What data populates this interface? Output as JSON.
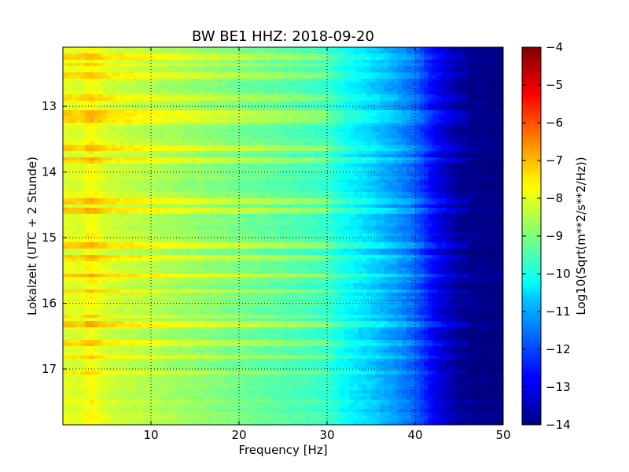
{
  "chart_data": {
    "type": "heatmap",
    "title": "BW BE1 HHZ: 2018-09-20",
    "xlabel": "Frequency [Hz]",
    "ylabel": "Lokalzeit (UTC + 2 Stunde)",
    "xlim": [
      0,
      50
    ],
    "ylim": [
      12.1,
      17.85
    ],
    "y_inverted": true,
    "x_ticks": [
      10,
      20,
      30,
      40,
      50
    ],
    "x_tick_labels": [
      "10",
      "20",
      "30",
      "40",
      "50"
    ],
    "y_ticks": [
      13,
      14,
      15,
      16,
      17
    ],
    "y_tick_labels": [
      "13",
      "14",
      "15",
      "16",
      "17"
    ],
    "grid": true,
    "colormap": "jet",
    "colorbar": {
      "label": "Log10(Sqrt(m**2/s**2/Hz))",
      "min": -14,
      "max": -4,
      "ticks": [
        -4,
        -5,
        -6,
        -7,
        -8,
        -9,
        -10,
        -11,
        -12,
        -13,
        -14
      ],
      "tick_labels": [
        "−4",
        "−5",
        "−6",
        "−7",
        "−8",
        "−9",
        "−10",
        "−11",
        "−12",
        "−13",
        "−14"
      ]
    },
    "spectral_profile": {
      "frequency_hz": [
        0,
        2,
        3,
        5,
        10,
        15,
        20,
        25,
        30,
        32,
        35,
        38,
        40,
        42,
        45,
        50
      ],
      "log_psd": [
        -8.0,
        -8.1,
        -7.7,
        -8.2,
        -8.5,
        -8.8,
        -9.1,
        -9.4,
        -9.7,
        -10.2,
        -10.7,
        -11.3,
        -11.8,
        -12.8,
        -13.8,
        -14.0
      ]
    },
    "high_energy_bands_hour": [
      12.25,
      12.36,
      12.53,
      12.88,
      13.12,
      13.2,
      13.64,
      13.82,
      14.46,
      14.58,
      15.12,
      15.3,
      15.58,
      15.82,
      16.2,
      16.32,
      16.6,
      16.82,
      17.05
    ]
  }
}
